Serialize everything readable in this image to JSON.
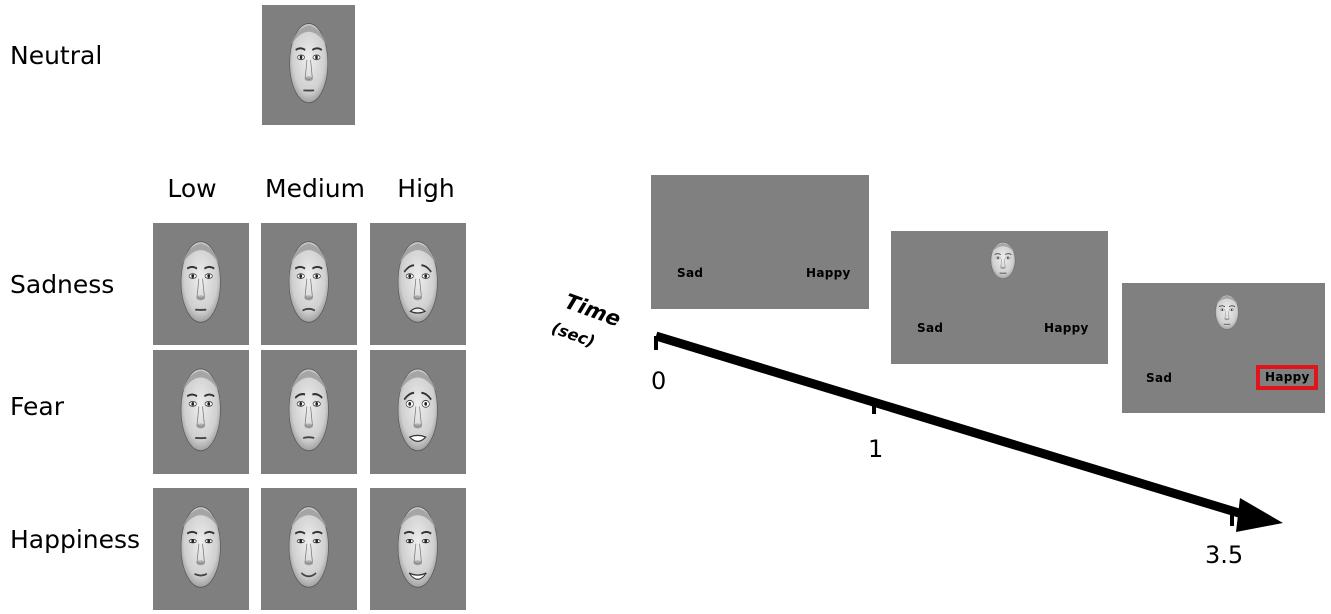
{
  "stimuli": {
    "neutral_label": "Neutral",
    "columns": [
      "Low",
      "Medium",
      "High"
    ],
    "rows": [
      "Sadness",
      "Fear",
      "Happiness"
    ]
  },
  "trial": {
    "time_label": "Time",
    "time_unit": "(sec)",
    "ticks": [
      "0",
      "1",
      "3.5"
    ],
    "screens": [
      {
        "left_option": "Sad",
        "right_option": "Happy",
        "face_shown": false,
        "selected": false
      },
      {
        "left_option": "Sad",
        "right_option": "Happy",
        "face_shown": true,
        "selected": false
      },
      {
        "left_option": "Sad",
        "right_option": "Happy",
        "face_shown": true,
        "selected": true
      }
    ],
    "selection_color": "#e0141b"
  }
}
